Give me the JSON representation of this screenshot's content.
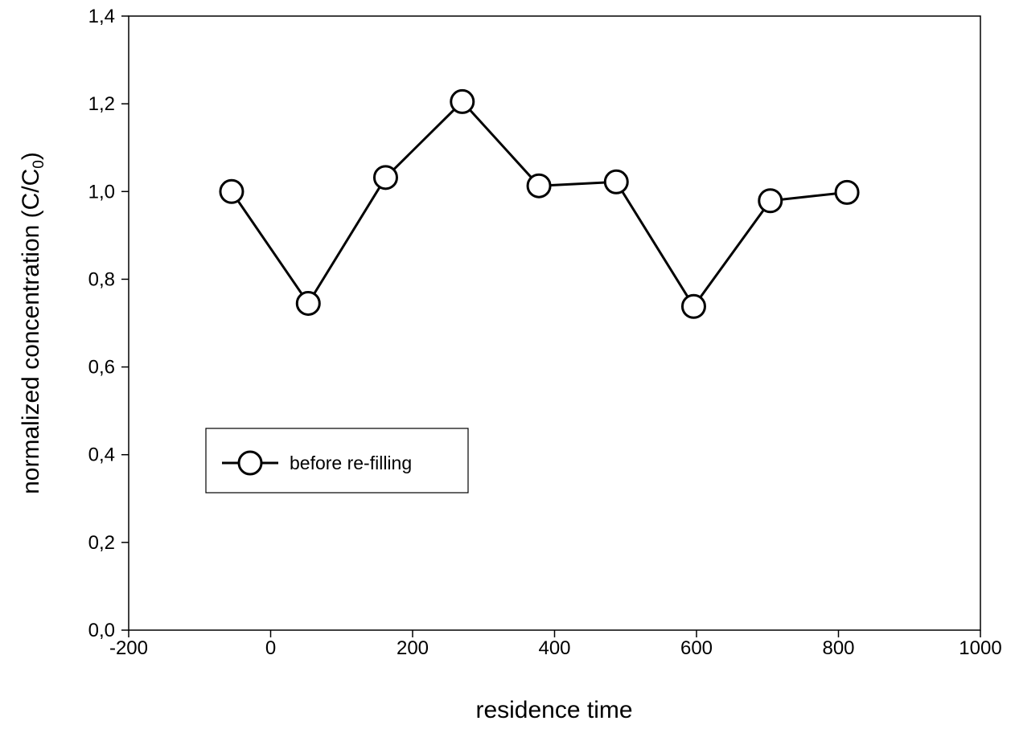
{
  "chart_data": {
    "type": "line",
    "title": "",
    "xlabel": "residence time",
    "ylabel": {
      "main": "normalized concentration (C/C",
      "subscript": "0",
      "close": ")"
    },
    "xlim": [
      -200,
      1000
    ],
    "ylim": [
      0,
      1.4
    ],
    "xticks": [
      -200,
      0,
      200,
      400,
      600,
      800,
      1000
    ],
    "xtick_labels": [
      "-200",
      "0",
      "200",
      "400",
      "600",
      "800",
      "1000"
    ],
    "yticks": [
      0,
      0.2,
      0.4,
      0.6,
      0.8,
      1.0,
      1.2,
      1.4
    ],
    "ytick_labels": [
      "0,0",
      "0,2",
      "0,4",
      "0,6",
      "0,8",
      "1,0",
      "1,2",
      "1,4"
    ],
    "grid": false,
    "legend_position": "middle-left",
    "series": [
      {
        "name": "before re-filling",
        "marker": "open-circle",
        "color": "#000000",
        "x": [
          -55,
          53,
          162,
          270,
          378,
          487,
          596,
          704,
          812
        ],
        "y": [
          1.0,
          0.745,
          1.032,
          1.205,
          1.013,
          1.022,
          0.738,
          0.979,
          0.998
        ]
      }
    ]
  }
}
